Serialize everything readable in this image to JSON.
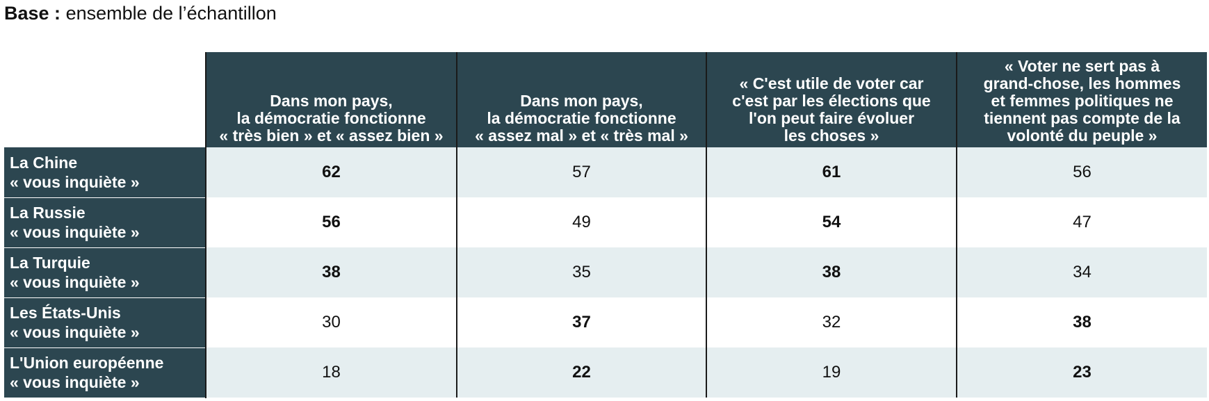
{
  "base": {
    "label": "Base :",
    "text": "ensemble de l’échantillon"
  },
  "table": {
    "columns": [
      "Dans mon pays,\nla démocratie fonctionne\n« très bien » et « assez bien »",
      "Dans mon pays,\nla démocratie fonctionne\n« assez mal » et « très mal »",
      "« C'est utile de voter car\nc'est par les élections que\nl'on peut faire évoluer\nles choses »",
      "« Voter ne sert pas à\ngrand-chose, les hommes\net femmes politiques ne\ntiennent pas compte de la\nvolonté du peuple »"
    ],
    "rows": [
      {
        "label": "La Chine\n« vous inquiète »",
        "values": [
          62,
          57,
          61,
          56
        ],
        "bold": [
          true,
          false,
          true,
          false
        ]
      },
      {
        "label": "La Russie\n« vous inquiète »",
        "values": [
          56,
          49,
          54,
          47
        ],
        "bold": [
          true,
          false,
          true,
          false
        ]
      },
      {
        "label": "La Turquie\n« vous inquiète »",
        "values": [
          38,
          35,
          38,
          34
        ],
        "bold": [
          true,
          false,
          true,
          false
        ]
      },
      {
        "label": "Les États-Unis\n« vous inquiète »",
        "values": [
          30,
          37,
          32,
          38
        ],
        "bold": [
          false,
          true,
          false,
          true
        ]
      },
      {
        "label": "L'Union européenne\n« vous inquiète »",
        "values": [
          18,
          22,
          19,
          23
        ],
        "bold": [
          false,
          true,
          false,
          true
        ]
      }
    ]
  }
}
